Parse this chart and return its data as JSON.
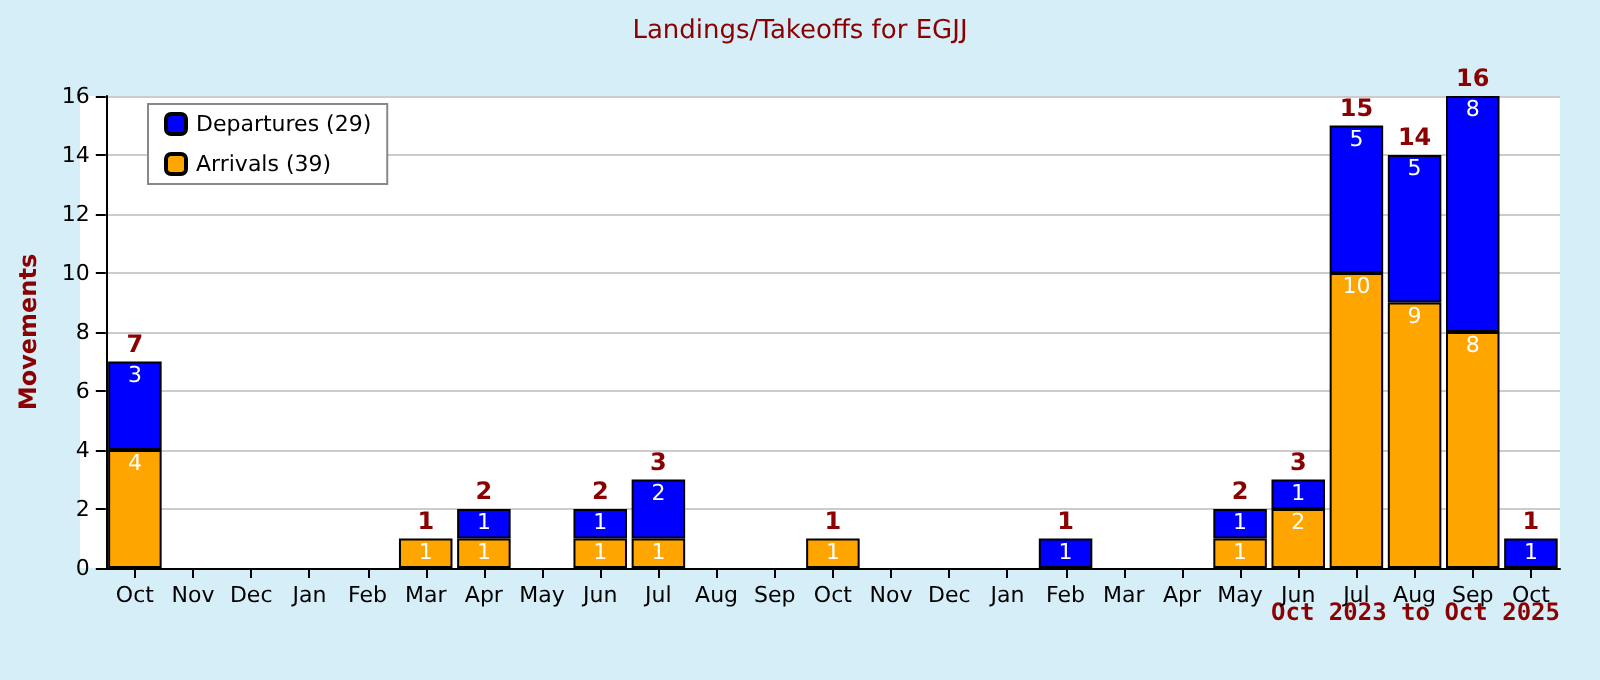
{
  "chart_data": {
    "type": "bar",
    "title": "Landings/Takeoffs for EGJJ",
    "ylabel": "Movements",
    "categories": [
      "Oct",
      "Nov",
      "Dec",
      "Jan",
      "Feb",
      "Mar",
      "Apr",
      "May",
      "Jun",
      "Jul",
      "Aug",
      "Sep",
      "Oct",
      "Nov",
      "Dec",
      "Jan",
      "Feb",
      "Mar",
      "Apr",
      "May",
      "Jun",
      "Jul",
      "Aug",
      "Sep",
      "Oct"
    ],
    "series": [
      {
        "name": "Arrivals (39)",
        "color": "#ffa500",
        "values": [
          4,
          null,
          null,
          null,
          null,
          1,
          1,
          null,
          1,
          1,
          null,
          null,
          1,
          null,
          null,
          null,
          null,
          null,
          null,
          1,
          2,
          10,
          9,
          8,
          null
        ]
      },
      {
        "name": "Departures (29)",
        "color": "#0000ff",
        "values": [
          3,
          null,
          null,
          null,
          null,
          null,
          1,
          null,
          1,
          2,
          null,
          null,
          null,
          null,
          null,
          null,
          1,
          null,
          null,
          1,
          1,
          5,
          5,
          8,
          1
        ]
      }
    ],
    "totals": [
      "7",
      null,
      null,
      null,
      null,
      "1",
      "2",
      null,
      "2",
      "3",
      null,
      null,
      "1",
      null,
      null,
      null,
      "1",
      null,
      null,
      "2",
      "3",
      "15",
      "14",
      "16",
      "1"
    ],
    "stacked": true,
    "data_labels": true,
    "ylim": [
      0,
      16
    ],
    "yticks": [
      0,
      2,
      4,
      6,
      8,
      10,
      12,
      14,
      16
    ],
    "grid": "y",
    "legend": "top left",
    "annotations": [
      "Oct 2023 to Oct 2025"
    ]
  }
}
